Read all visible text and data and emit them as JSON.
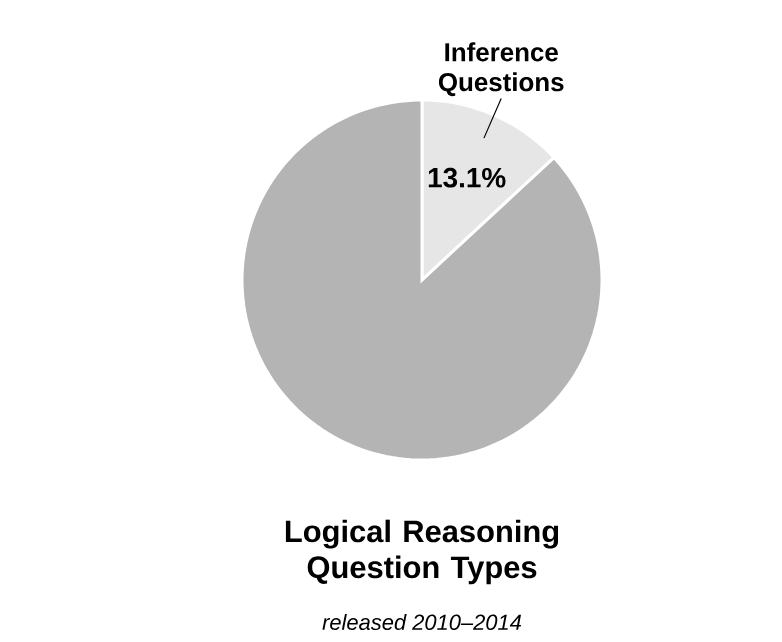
{
  "chart_data": {
    "type": "pie",
    "title": "Logical Reasoning Question Types",
    "annotations": [
      "released 2010–2014"
    ],
    "categories": [
      "Inference Questions",
      null
    ],
    "values": [
      13.1,
      86.9
    ],
    "colors": [
      "#e6e6e6",
      "#b4b4b4"
    ],
    "value_labels": [
      "13.1%",
      null
    ]
  }
}
